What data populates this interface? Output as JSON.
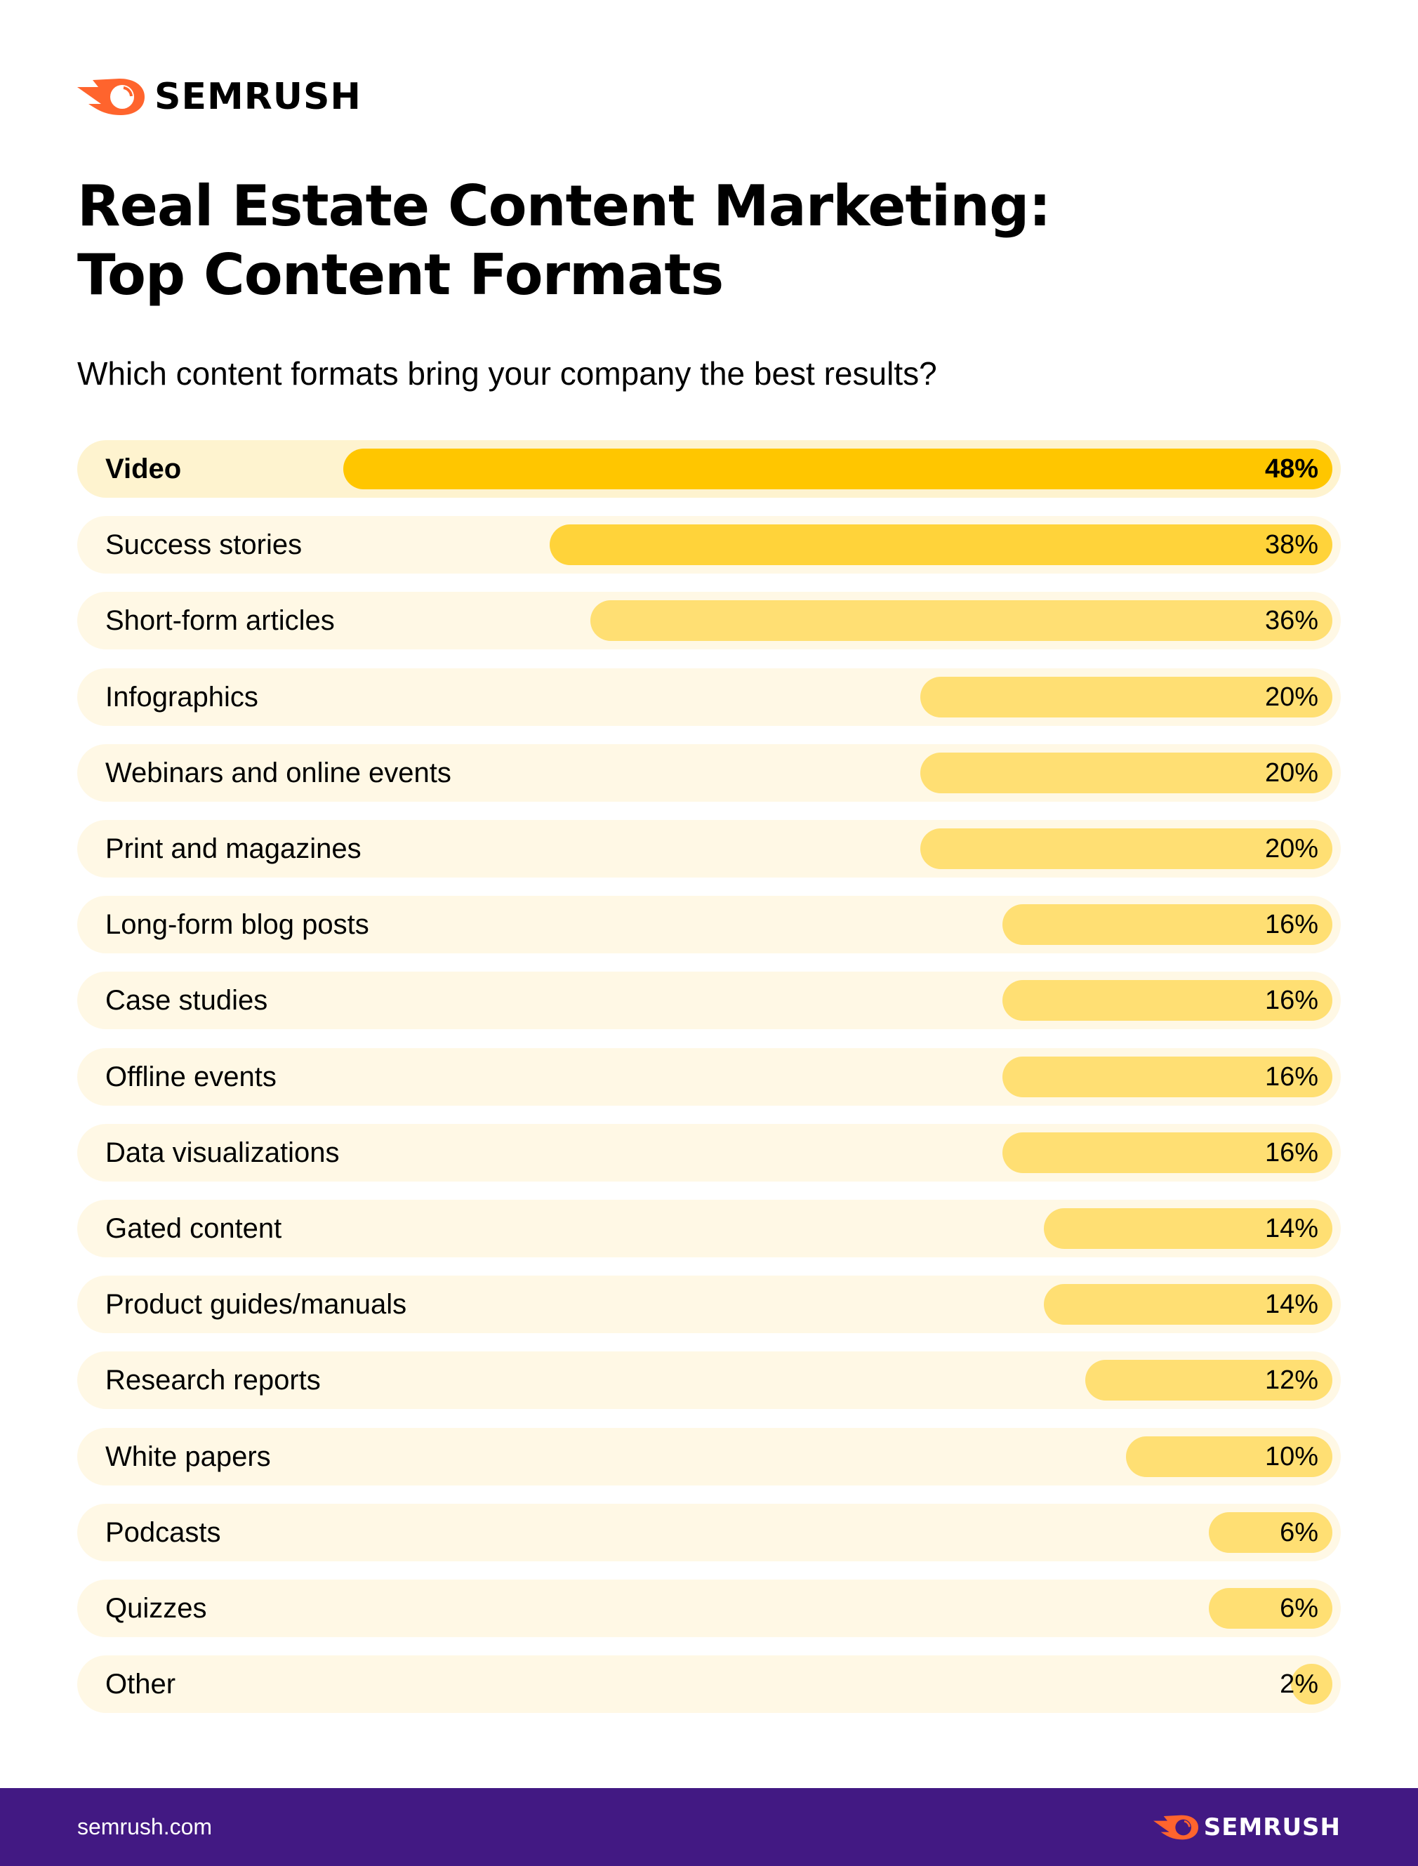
{
  "brand": {
    "name": "SEMRUSH",
    "logo_color": "#ff642d",
    "footer_color": "#421983"
  },
  "header": {
    "title_line1": "Real Estate Content Marketing:",
    "title_line2": "Top Content Formats",
    "subtitle": "Which content formats bring your company the best results?"
  },
  "footer": {
    "url": "semrush.com"
  },
  "chart_data": {
    "type": "bar",
    "orientation": "horizontal",
    "title": "Real Estate Content Marketing: Top Content Formats",
    "subtitle": "Which content formats bring your company the best results?",
    "unit": "%",
    "xlim": [
      0,
      48
    ],
    "grid": false,
    "categories": [
      "Video",
      "Success stories",
      "Short-form articles",
      "Infographics",
      "Webinars and online events",
      "Print and magazines",
      "Long-form blog posts",
      "Case studies",
      "Offline events",
      "Data visualizations",
      "Gated content",
      "Product guides/manuals",
      "Research reports",
      "White papers",
      "Podcasts",
      "Quizzes",
      "Other"
    ],
    "values": [
      48,
      38,
      36,
      20,
      20,
      20,
      16,
      16,
      16,
      16,
      14,
      14,
      12,
      10,
      6,
      6,
      2
    ],
    "labels": [
      "48%",
      "38%",
      "36%",
      "20%",
      "20%",
      "20%",
      "16%",
      "16%",
      "16%",
      "16%",
      "14%",
      "14%",
      "12%",
      "10%",
      "6%",
      "6%",
      "2%"
    ],
    "colors": {
      "top": "#ffc600",
      "second": "#ffd33a",
      "rest": "#ffdf73",
      "track_top": "#fef3cf",
      "track": "#fff8e5"
    }
  }
}
